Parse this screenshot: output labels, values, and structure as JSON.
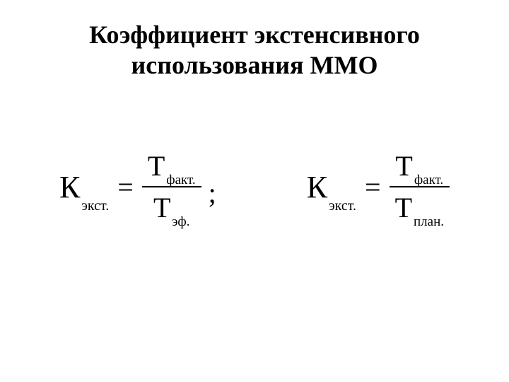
{
  "title": {
    "line1": "Коэффициент экстенсивного",
    "line2": "использования ММО",
    "fontsize": 36,
    "fontweight": "bold",
    "color": "#000000"
  },
  "formula1": {
    "coef_main": "К",
    "coef_sub": "экст.",
    "equals": "=",
    "numerator_main": "Т",
    "numerator_sub": "факт.",
    "denominator_main": "Т",
    "denominator_sub": "эф.",
    "separator": ";"
  },
  "formula2": {
    "coef_main": "К",
    "coef_sub": "экст.",
    "equals": "=",
    "numerator_main": "Т",
    "numerator_sub": "факт.",
    "denominator_main": "Т",
    "denominator_sub": "план."
  },
  "styling": {
    "background_color": "#ffffff",
    "text_color": "#000000",
    "font_family": "Times New Roman",
    "main_symbol_fontsize": 44,
    "subscript_fontsize": 20,
    "fraction_symbol_fontsize": 40,
    "fraction_sub_fontsize": 19,
    "fraction_line_width": 2.5
  }
}
